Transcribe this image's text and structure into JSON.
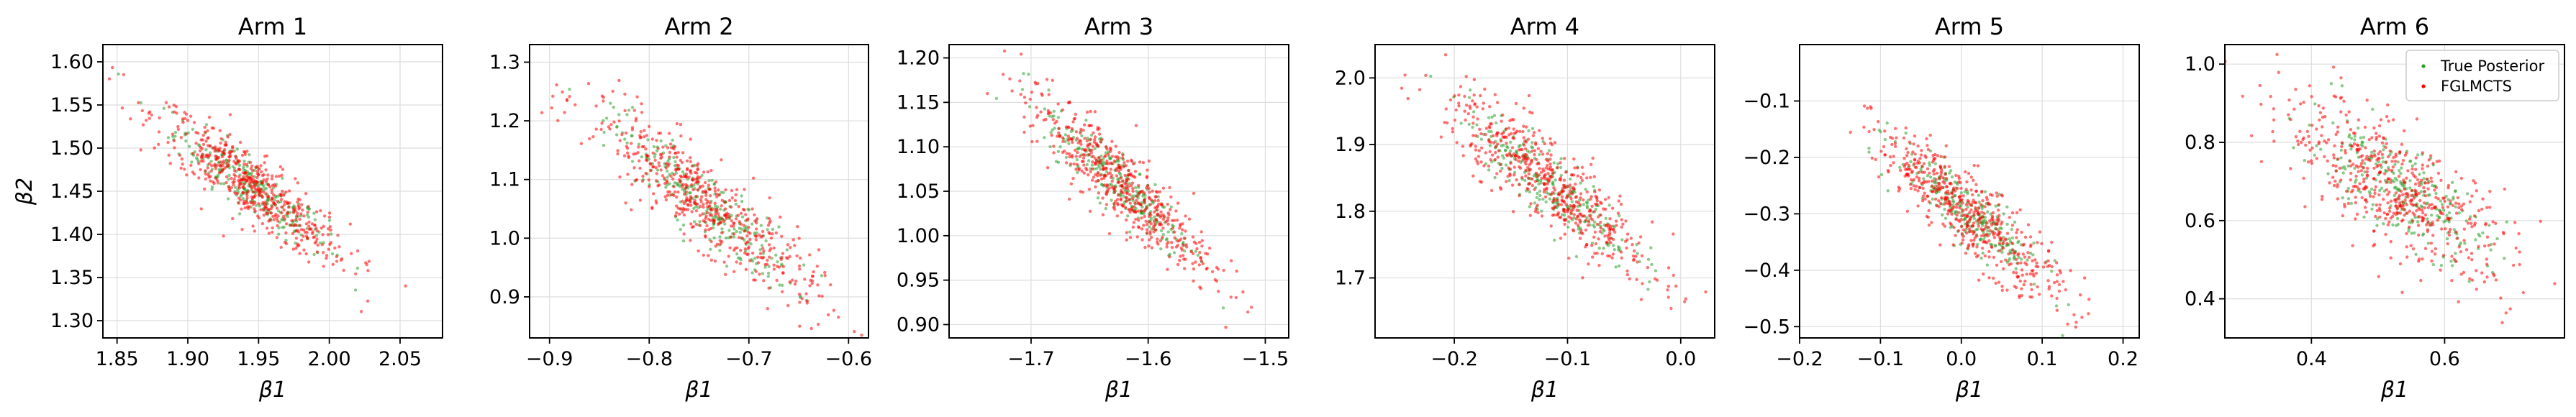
{
  "figure": {
    "background": "#ffffff"
  },
  "colors": {
    "true_posterior": "#2ca02c",
    "fglmcts": "#ff0000",
    "grid": "#dddddd"
  },
  "legend": {
    "placement": "top-right",
    "panel": 5
  },
  "chart_data": [
    {
      "type": "scatter",
      "title": "Arm 1",
      "xlabel": "β1",
      "ylabel": "β2",
      "xlim": [
        1.84,
        2.08
      ],
      "ylim": [
        1.28,
        1.62
      ],
      "xticks": [
        "1.85",
        "1.90",
        "1.95",
        "2.00",
        "2.05"
      ],
      "xtick_values": [
        1.85,
        1.9,
        1.95,
        2.0,
        2.05
      ],
      "yticks": [
        "1.30",
        "1.35",
        "1.40",
        "1.45",
        "1.50",
        "1.55",
        "1.60"
      ],
      "ytick_values": [
        1.3,
        1.35,
        1.4,
        1.45,
        1.5,
        1.55,
        1.6
      ],
      "mean": [
        1.945,
        1.455
      ],
      "sd": [
        0.03,
        0.04
      ],
      "rho": -0.9,
      "grid": true,
      "series": [
        {
          "name": "True Posterior",
          "n": 260
        },
        {
          "name": "FGLMCTS",
          "n": 520
        }
      ]
    },
    {
      "type": "scatter",
      "title": "Arm 2",
      "xlabel": "β1",
      "ylabel": "",
      "xlim": [
        -0.92,
        -0.58
      ],
      "ylim": [
        0.83,
        1.33
      ],
      "xticks": [
        "−0.9",
        "−0.8",
        "−0.7",
        "−0.6"
      ],
      "xtick_values": [
        -0.9,
        -0.8,
        -0.7,
        -0.6
      ],
      "yticks": [
        "0.9",
        "1.0",
        "1.1",
        "1.2",
        "1.3"
      ],
      "ytick_values": [
        0.9,
        1.0,
        1.1,
        1.2,
        1.3
      ],
      "mean": [
        -0.745,
        1.06
      ],
      "sd": [
        0.05,
        0.075
      ],
      "rho": -0.9,
      "grid": true,
      "series": [
        {
          "name": "True Posterior",
          "n": 260
        },
        {
          "name": "FGLMCTS",
          "n": 520
        }
      ]
    },
    {
      "type": "scatter",
      "title": "Arm 3",
      "xlabel": "β1",
      "ylabel": "",
      "xlim": [
        -1.77,
        -1.48
      ],
      "ylim": [
        0.885,
        1.215
      ],
      "xticks": [
        "−1.7",
        "−1.6",
        "−1.5"
      ],
      "xtick_values": [
        -1.7,
        -1.6,
        -1.5
      ],
      "yticks": [
        "0.90",
        "0.95",
        "1.00",
        "1.05",
        "1.10",
        "1.15",
        "1.20"
      ],
      "ytick_values": [
        0.9,
        0.95,
        1.0,
        1.05,
        1.1,
        1.15,
        1.2
      ],
      "mean": [
        -1.625,
        1.06
      ],
      "sd": [
        0.035,
        0.045
      ],
      "rho": -0.9,
      "grid": true,
      "series": [
        {
          "name": "True Posterior",
          "n": 260
        },
        {
          "name": "FGLMCTS",
          "n": 520
        }
      ]
    },
    {
      "type": "scatter",
      "title": "Arm 4",
      "xlabel": "β1",
      "ylabel": "",
      "xlim": [
        -0.27,
        0.03
      ],
      "ylim": [
        1.61,
        2.05
      ],
      "xticks": [
        "−0.2",
        "−0.1",
        "0.0"
      ],
      "xtick_values": [
        -0.2,
        -0.1,
        0.0
      ],
      "yticks": [
        "1.7",
        "1.8",
        "1.9",
        "2.0"
      ],
      "ytick_values": [
        1.7,
        1.8,
        1.9,
        2.0
      ],
      "mean": [
        -0.115,
        1.84
      ],
      "sd": [
        0.04,
        0.06
      ],
      "rho": -0.88,
      "grid": true,
      "series": [
        {
          "name": "True Posterior",
          "n": 260
        },
        {
          "name": "FGLMCTS",
          "n": 520
        }
      ]
    },
    {
      "type": "scatter",
      "title": "Arm 5",
      "xlabel": "β1",
      "ylabel": "",
      "xlim": [
        -0.2,
        0.22
      ],
      "ylim": [
        -0.52,
        0.0
      ],
      "xticks": [
        "−0.2",
        "−0.1",
        "0.0",
        "0.1",
        "0.2"
      ],
      "xtick_values": [
        -0.2,
        -0.1,
        0.0,
        0.1,
        0.2
      ],
      "yticks": [
        "−0.5",
        "−0.4",
        "−0.3",
        "−0.2",
        "−0.1"
      ],
      "ytick_values": [
        -0.5,
        -0.4,
        -0.3,
        -0.2,
        -0.1
      ],
      "mean": [
        0.01,
        -0.3
      ],
      "sd": [
        0.05,
        0.065
      ],
      "rho": -0.88,
      "grid": true,
      "series": [
        {
          "name": "True Posterior",
          "n": 260
        },
        {
          "name": "FGLMCTS",
          "n": 520
        }
      ]
    },
    {
      "type": "scatter",
      "title": "Arm 6",
      "xlabel": "β1",
      "ylabel": "",
      "xlim": [
        0.27,
        0.78
      ],
      "ylim": [
        0.3,
        1.05
      ],
      "xticks": [
        "0.4",
        "0.6"
      ],
      "xtick_values": [
        0.4,
        0.6
      ],
      "yticks": [
        "0.4",
        "0.6",
        "0.8",
        "1.0"
      ],
      "ytick_values": [
        0.4,
        0.6,
        0.8,
        1.0
      ],
      "mean": [
        0.53,
        0.68
      ],
      "sd": [
        0.075,
        0.1
      ],
      "rho": -0.75,
      "grid": true,
      "series": [
        {
          "name": "True Posterior",
          "n": 260
        },
        {
          "name": "FGLMCTS",
          "n": 520
        }
      ]
    }
  ]
}
